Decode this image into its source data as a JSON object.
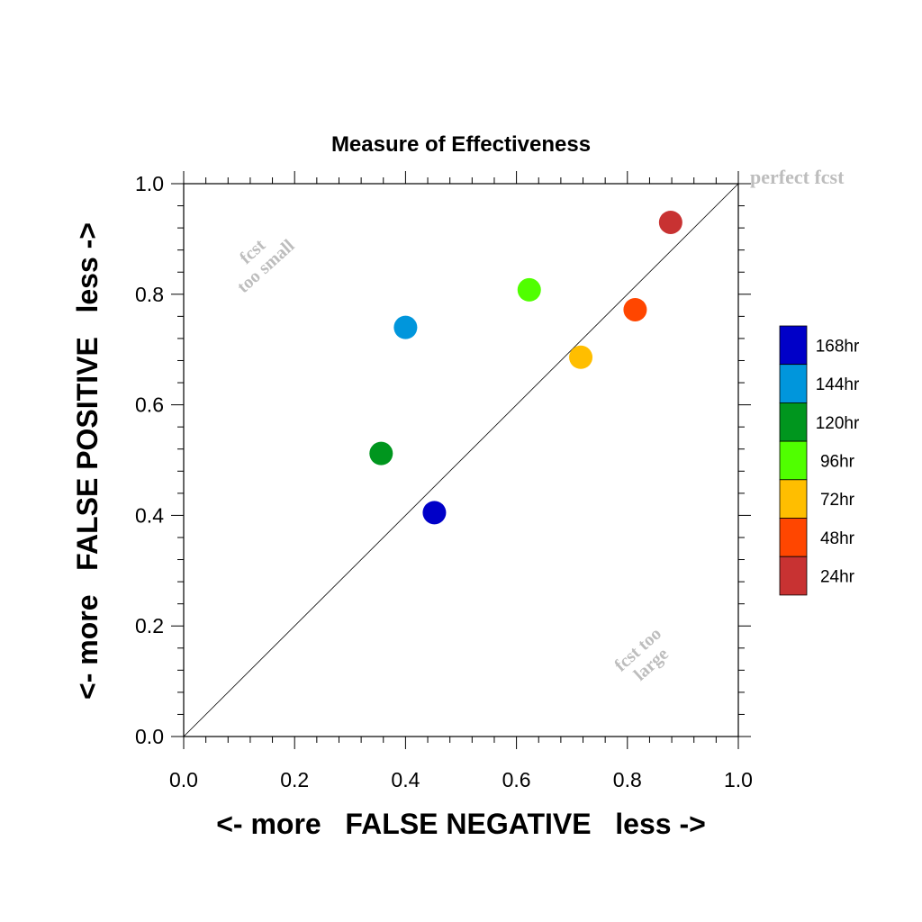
{
  "chart_data": {
    "type": "scatter",
    "title": "Measure of Effectiveness",
    "xlabel": "<- more   FALSE NEGATIVE   less ->",
    "ylabel": "<- more   FALSE POSITIVE   less ->",
    "xlim": [
      0.0,
      1.0
    ],
    "ylim": [
      0.0,
      1.0
    ],
    "x_ticks": [
      "0.0",
      "0.2",
      "0.4",
      "0.6",
      "0.8",
      "1.0"
    ],
    "y_ticks": [
      "0.0",
      "0.2",
      "0.4",
      "0.6",
      "0.8",
      "1.0"
    ],
    "grid": false,
    "legend_position": "right",
    "diagonal_line": true,
    "annotations": {
      "upper_left": [
        "fcst",
        "too small"
      ],
      "lower_right": [
        "fcst too",
        "large"
      ],
      "top_right": "perfect fcst"
    },
    "series": [
      {
        "name": "168hr",
        "x": 0.452,
        "y": 0.405,
        "color": "#0000c8"
      },
      {
        "name": "144hr",
        "x": 0.4,
        "y": 0.74,
        "color": "#0096dc"
      },
      {
        "name": "120hr",
        "x": 0.356,
        "y": 0.512,
        "color": "#00961e"
      },
      {
        "name": "96hr",
        "x": 0.623,
        "y": 0.808,
        "color": "#50ff00"
      },
      {
        "name": "72hr",
        "x": 0.716,
        "y": 0.686,
        "color": "#ffbe00"
      },
      {
        "name": "48hr",
        "x": 0.814,
        "y": 0.772,
        "color": "#ff4600"
      },
      {
        "name": "24hr",
        "x": 0.878,
        "y": 0.93,
        "color": "#c83232"
      }
    ]
  }
}
